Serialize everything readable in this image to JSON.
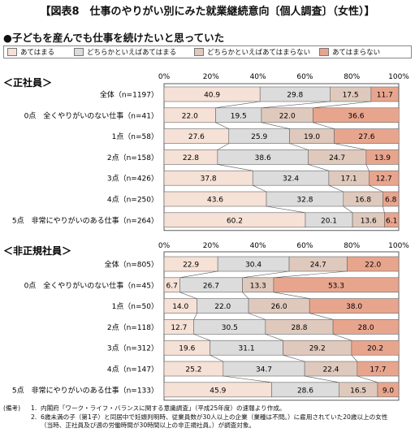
{
  "title": "【図表8　仕事のやりがい別にみた就業継続意向〔個人調査〕（女性）】",
  "subtitle": "●子どもを産んでも仕事を続けたいと思っていた",
  "legend": [
    {
      "label": "あてはまる",
      "color": "#f6e1d6"
    },
    {
      "label": "どちらかといえばあてはまる",
      "color": "#dcdcdc"
    },
    {
      "label": "どちらかといえばあてはまらない",
      "color": "#dfc9bd"
    },
    {
      "label": "あてはまらない",
      "color": "#e8a58e"
    }
  ],
  "chart_data": [
    {
      "type": "bar",
      "stacked": true,
      "orientation": "horizontal",
      "title": "＜正社員＞",
      "xlim": [
        0,
        100
      ],
      "x_ticks": [
        "0%",
        "20%",
        "40%",
        "60%",
        "80%",
        "100%"
      ],
      "categories": [
        "全体（n=1197）",
        "0点　全くやりがいのない仕事（n=41）",
        "1点（n=58）",
        "2点（n=158）",
        "3点（n=426）",
        "4点（n=250）",
        "5点　非常にやりがいのある仕事（n=264）"
      ],
      "series": [
        {
          "name": "あてはまる",
          "values": [
            40.9,
            22.0,
            27.6,
            22.8,
            37.8,
            43.6,
            60.2
          ]
        },
        {
          "name": "どちらかといえばあてはまる",
          "values": [
            29.8,
            19.5,
            25.9,
            38.6,
            32.4,
            32.8,
            20.1
          ]
        },
        {
          "name": "どちらかといえばあてはまらない",
          "values": [
            17.5,
            22.0,
            19.0,
            24.7,
            17.1,
            16.8,
            13.6
          ]
        },
        {
          "name": "あてはまらない",
          "values": [
            11.7,
            36.6,
            27.6,
            13.9,
            12.7,
            6.8,
            6.1
          ]
        }
      ]
    },
    {
      "type": "bar",
      "stacked": true,
      "orientation": "horizontal",
      "title": "＜非正規社員＞",
      "xlim": [
        0,
        100
      ],
      "x_ticks": [
        "0%",
        "20%",
        "40%",
        "60%",
        "80%",
        "100%"
      ],
      "categories": [
        "全体（n=805）",
        "0点　全くやりがいのない仕事（n=45）",
        "1点（n=50）",
        "2点（n=118）",
        "3点（n=312）",
        "4点（n=147）",
        "5点　非常にやりがいのある仕事（n=133）"
      ],
      "series": [
        {
          "name": "あてはまる",
          "values": [
            22.9,
            6.7,
            14.0,
            12.7,
            19.6,
            25.2,
            45.9
          ]
        },
        {
          "name": "どちらかといえばあてはまる",
          "values": [
            30.4,
            26.7,
            22.0,
            30.5,
            31.1,
            34.7,
            28.6
          ]
        },
        {
          "name": "どちらかといえばあてはまらない",
          "values": [
            24.7,
            13.3,
            26.0,
            28.8,
            29.2,
            22.4,
            16.5
          ]
        },
        {
          "name": "あてはまらない",
          "values": [
            22.0,
            53.3,
            38.0,
            28.0,
            20.2,
            17.7,
            9.0
          ]
        }
      ]
    }
  ],
  "notes": {
    "head": "(備考)",
    "items": [
      {
        "num": "1.",
        "text": "内閣府「ワーク・ライフ・バランスに関する意識調査」（平成25年度）の速報より作成。"
      },
      {
        "num": "2.",
        "text": "6歳未満の子（第1子）と同居中で妊娠判明時、従業員数が30人以上の企業（業種は不問。）に雇用されていた20歳以上の女性"
      },
      {
        "num": "",
        "text": "（当時、正社員及び週の労働時間が30時間以上の非正規社員。）が調査対象。"
      }
    ]
  }
}
